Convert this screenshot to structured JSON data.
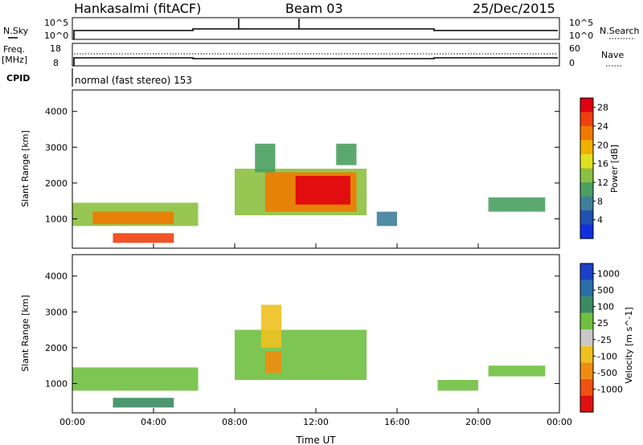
{
  "header": {
    "station": "Hankasalmi (fitACF)",
    "beam": "Beam 03",
    "date": "25/Dec/2015"
  },
  "strip": {
    "nsky_label": "N.Sky",
    "nsearch_label": "N.Search",
    "nsky_top": "10^5",
    "nsky_bottom": "10^0",
    "nsearch_top": "10^5",
    "nsearch_bottom": "10^0",
    "freq_label_1": "Freq.",
    "freq_label_2": "[MHz]",
    "freq_top": "18",
    "freq_bottom": "8",
    "nave_label": "Nave",
    "nave_top": "60",
    "nave_bottom": "0",
    "cpid_label": "CPID",
    "cpid_value": "normal (fast stereo) 153"
  },
  "chart_data": [
    {
      "type": "heatmap",
      "title": "",
      "xlabel": "Time UT",
      "ylabel": "Slant Range [km]",
      "x_ticks": [
        "00:00",
        "04:00",
        "08:00",
        "12:00",
        "16:00",
        "20:00",
        "00:00"
      ],
      "y_ticks": [
        "1000",
        "2000",
        "3000",
        "4000"
      ],
      "xlim_hours": [
        0,
        24
      ],
      "ylim_km": [
        180,
        4600
      ],
      "colorbar": {
        "label": "Power [dB]",
        "ticks": [
          "4",
          "8",
          "12",
          "16",
          "20",
          "24",
          "28"
        ],
        "range": [
          0,
          30
        ],
        "colors": [
          "#1030e0",
          "#2050b0",
          "#3f7f9a",
          "#4aa060",
          "#8cc040",
          "#e0e020",
          "#f0b000",
          "#f07a00",
          "#f04010",
          "#e00010"
        ]
      },
      "regions": [
        {
          "t0": 0.0,
          "t1": 6.2,
          "r0": 800,
          "r1": 1450,
          "value": 12
        },
        {
          "t0": 1.0,
          "t1": 5.0,
          "r0": 850,
          "r1": 1200,
          "value": 22
        },
        {
          "t0": 2.0,
          "t1": 5.0,
          "r0": 330,
          "r1": 600,
          "value": 26
        },
        {
          "t0": 8.0,
          "t1": 14.5,
          "r0": 1100,
          "r1": 2400,
          "value": 12
        },
        {
          "t0": 9.5,
          "t1": 14.0,
          "r0": 1200,
          "r1": 2300,
          "value": 22
        },
        {
          "t0": 11.0,
          "t1": 13.7,
          "r0": 1400,
          "r1": 2200,
          "value": 28
        },
        {
          "t0": 9.0,
          "t1": 10.0,
          "r0": 2300,
          "r1": 3100,
          "value": 10
        },
        {
          "t0": 13.0,
          "t1": 14.0,
          "r0": 2500,
          "r1": 3100,
          "value": 10
        },
        {
          "t0": 20.5,
          "t1": 23.3,
          "r0": 1200,
          "r1": 1600,
          "value": 10
        },
        {
          "t0": 15.0,
          "t1": 16.0,
          "r0": 800,
          "r1": 1200,
          "value": 8
        }
      ]
    },
    {
      "type": "heatmap",
      "title": "",
      "xlabel": "Time UT",
      "ylabel": "Slant Range [km]",
      "x_ticks": [
        "00:00",
        "04:00",
        "08:00",
        "12:00",
        "16:00",
        "20:00",
        "00:00"
      ],
      "y_ticks": [
        "1000",
        "2000",
        "3000",
        "4000"
      ],
      "xlim_hours": [
        0,
        24
      ],
      "ylim_km": [
        180,
        4600
      ],
      "colorbar": {
        "label": "Velocity [m s^-1]",
        "ticks": [
          "1000",
          "500",
          "100",
          "25",
          "-25",
          "-100",
          "-500",
          "-1000"
        ],
        "colors": [
          "#1840c8",
          "#2a6ea8",
          "#3a8c60",
          "#70c040",
          "#c8c8c8",
          "#f0c020",
          "#f08c10",
          "#f05010",
          "#e01010"
        ]
      },
      "regions": [
        {
          "t0": 0.0,
          "t1": 6.2,
          "r0": 800,
          "r1": 1450,
          "value": "25"
        },
        {
          "t0": 2.0,
          "t1": 5.0,
          "r0": 330,
          "r1": 600,
          "value": "100"
        },
        {
          "t0": 8.0,
          "t1": 14.5,
          "r0": 1100,
          "r1": 2500,
          "value": "25"
        },
        {
          "t0": 9.3,
          "t1": 10.3,
          "r0": 2000,
          "r1": 3200,
          "value": "-100"
        },
        {
          "t0": 9.5,
          "t1": 10.3,
          "r0": 1300,
          "r1": 1900,
          "value": "-500"
        },
        {
          "t0": 20.5,
          "t1": 23.3,
          "r0": 1200,
          "r1": 1500,
          "value": "25"
        },
        {
          "t0": 18.0,
          "t1": 20.0,
          "r0": 800,
          "r1": 1100,
          "value": "25"
        }
      ]
    }
  ]
}
